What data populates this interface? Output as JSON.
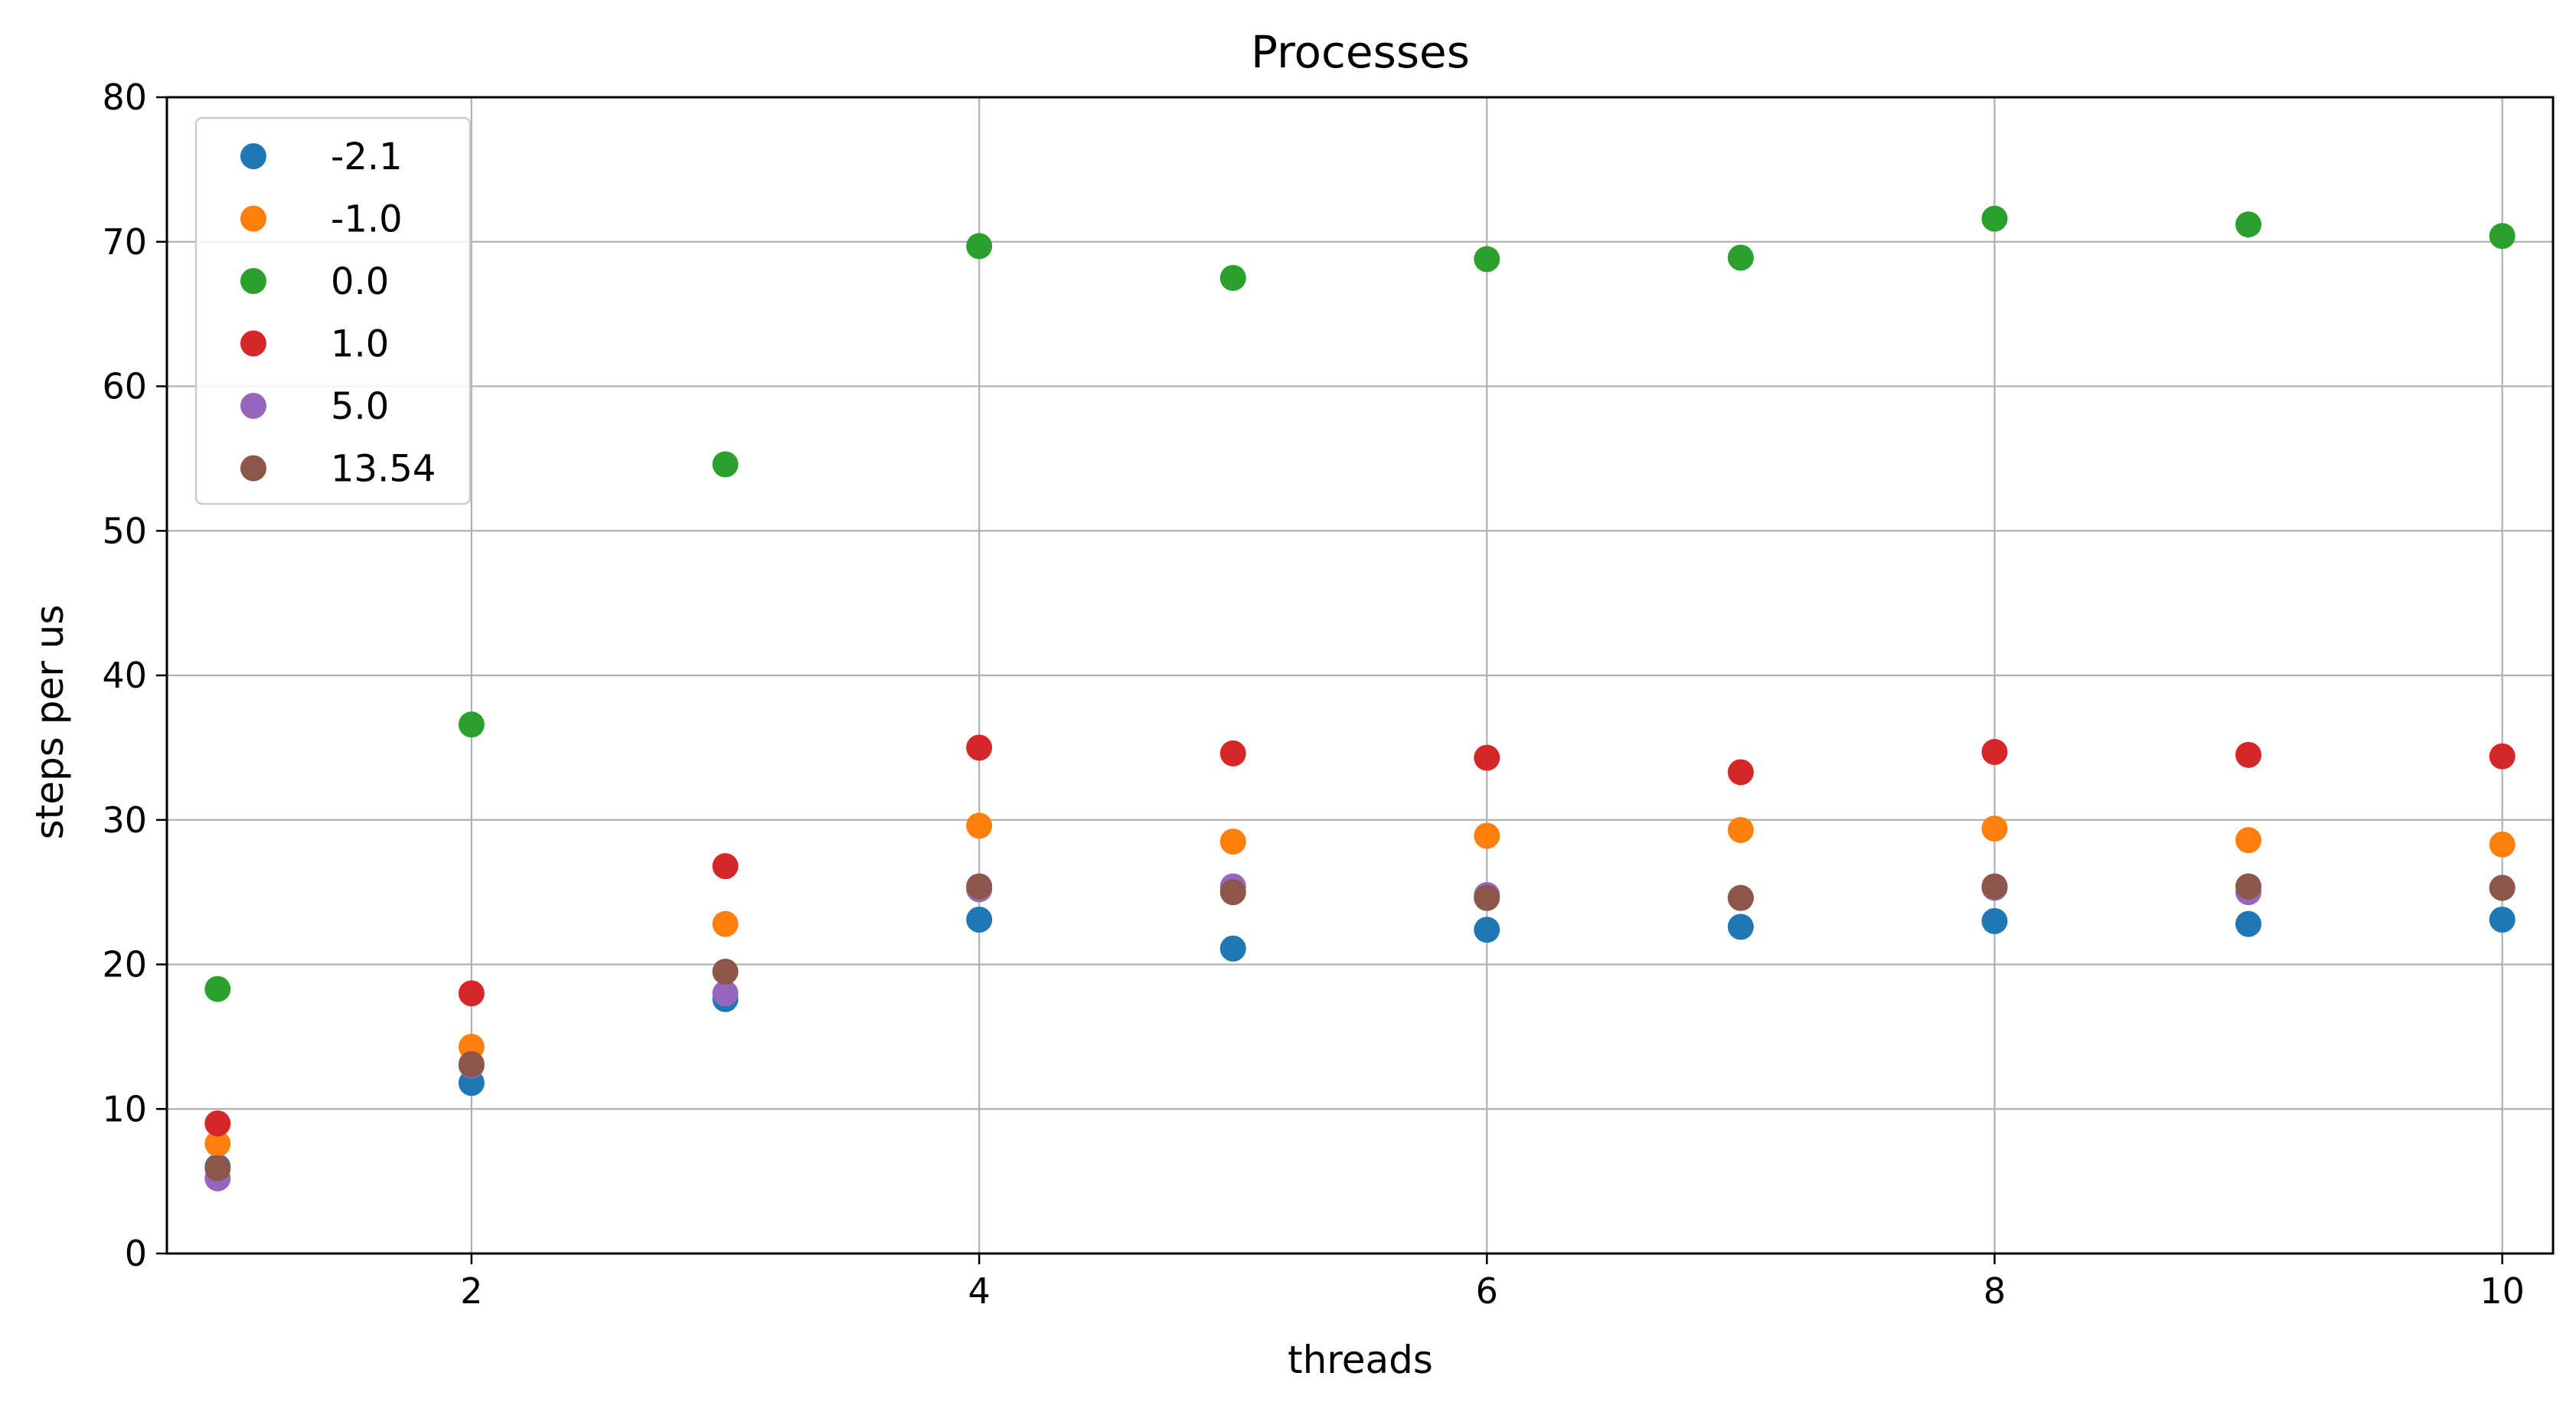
{
  "chart_data": {
    "type": "scatter",
    "title": "Processes",
    "xlabel": "threads",
    "ylabel": "steps per us",
    "xlim": [
      0.8,
      10.2
    ],
    "ylim": [
      0,
      80
    ],
    "xticks": [
      2,
      4,
      6,
      8,
      10
    ],
    "yticks": [
      0,
      10,
      20,
      30,
      40,
      50,
      60,
      70,
      80
    ],
    "grid": true,
    "legend_position": "top-left",
    "x": [
      1,
      2,
      3,
      4,
      5,
      6,
      7,
      8,
      9,
      10
    ],
    "series": [
      {
        "name": "-2.1",
        "color": "#1f77b4",
        "values": [
          6.0,
          11.8,
          17.6,
          23.1,
          21.1,
          22.4,
          22.6,
          23.0,
          22.8,
          23.1
        ]
      },
      {
        "name": "-1.0",
        "color": "#ff7f0e",
        "values": [
          7.6,
          14.3,
          22.8,
          29.6,
          28.5,
          28.9,
          29.3,
          29.4,
          28.6,
          28.3
        ]
      },
      {
        "name": "0.0",
        "color": "#2ca02c",
        "values": [
          18.3,
          36.6,
          54.6,
          69.7,
          67.5,
          68.8,
          68.9,
          71.6,
          71.2,
          70.4
        ]
      },
      {
        "name": "1.0",
        "color": "#d62728",
        "values": [
          9.0,
          18.0,
          26.8,
          35.0,
          34.6,
          34.3,
          33.3,
          34.7,
          34.5,
          34.4
        ]
      },
      {
        "name": "5.0",
        "color": "#9467bd",
        "values": [
          5.2,
          13.0,
          18.0,
          25.2,
          25.4,
          24.8,
          24.6,
          25.3,
          25.0,
          25.3
        ]
      },
      {
        "name": "13.54",
        "color": "#8c564b",
        "values": [
          5.9,
          13.1,
          19.5,
          25.4,
          25.0,
          24.6,
          24.6,
          25.4,
          25.4,
          25.3
        ]
      }
    ]
  }
}
